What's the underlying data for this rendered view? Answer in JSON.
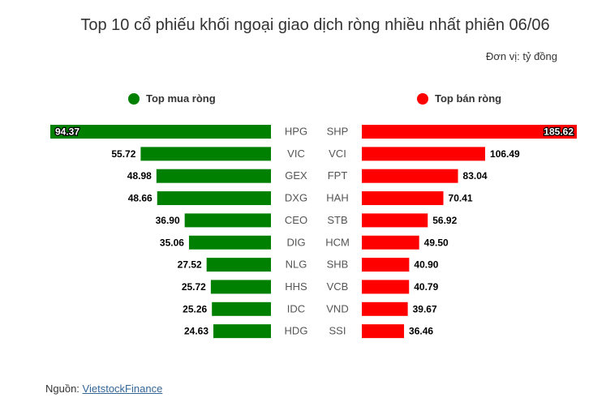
{
  "title": "Top 10 cổ phiếu khối ngoại giao dịch ròng nhiều nhất phiên 06/06",
  "unit": "Đơn vị: tỷ đồng",
  "source": {
    "label": "Nguồn: ",
    "link_text": "VietstockFinance"
  },
  "colors": {
    "buy": "#008000",
    "sell": "#ff0000"
  },
  "chart_data": {
    "type": "bar",
    "orientation": "horizontal-butterfly",
    "buy": {
      "name": "Top mua ròng",
      "color": "#008000",
      "categories": [
        "HPG",
        "VIC",
        "GEX",
        "DXG",
        "CEO",
        "DIG",
        "NLG",
        "HHS",
        "IDC",
        "HDG"
      ],
      "values": [
        94.37,
        55.72,
        48.98,
        48.66,
        36.9,
        35.06,
        27.52,
        25.72,
        25.26,
        24.63
      ],
      "labels": [
        "94.37",
        "55.72",
        "48.98",
        "48.66",
        "36.90",
        "35.06",
        "27.52",
        "25.72",
        "25.26",
        "24.63"
      ]
    },
    "sell": {
      "name": "Top bán ròng",
      "color": "#ff0000",
      "categories": [
        "SHP",
        "VCI",
        "FPT",
        "HAH",
        "STB",
        "HCM",
        "SHB",
        "VCB",
        "VND",
        "SSI"
      ],
      "values": [
        185.62,
        106.49,
        83.04,
        70.41,
        56.92,
        49.5,
        40.9,
        40.79,
        39.67,
        36.46
      ],
      "labels": [
        "185.62",
        "106.49",
        "83.04",
        "70.41",
        "56.92",
        "49.50",
        "40.90",
        "40.79",
        "39.67",
        "36.46"
      ]
    }
  }
}
